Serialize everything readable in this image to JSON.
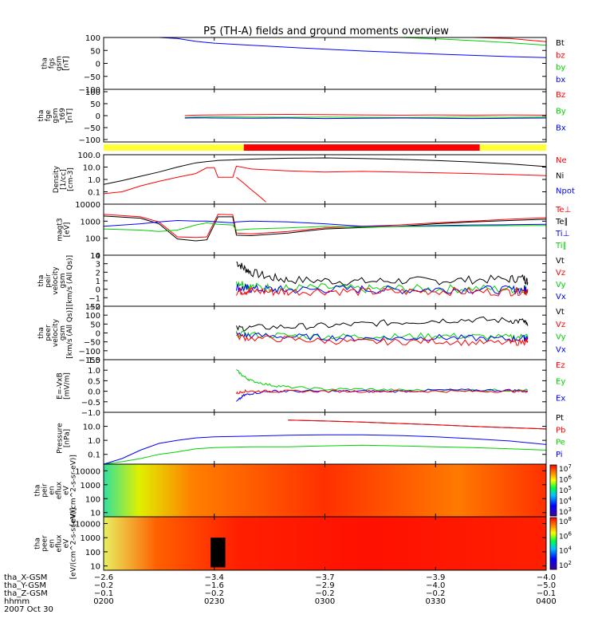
{
  "title": "P5 (TH-A) fields and ground moments overview",
  "colors": {
    "black": "#000000",
    "red": "#ff0000",
    "green": "#00d000",
    "blue": "#0000ff",
    "yellow": "#ffff33"
  },
  "chart_data": [
    {
      "type": "line",
      "id": "fgs",
      "ylabel": [
        "tha",
        "fgs",
        "gsm",
        "[nT]"
      ],
      "ylim": [
        -100,
        100
      ],
      "log": false,
      "yticks": [
        "100",
        "50",
        "0",
        "−50",
        "−100"
      ],
      "legend": [
        {
          "name": "Bt",
          "color": "black"
        },
        {
          "name": "bz",
          "color": "red"
        },
        {
          "name": "by",
          "color": "green"
        },
        {
          "name": "bx",
          "color": "blue"
        }
      ],
      "x": [
        0,
        15,
        20,
        25,
        30,
        40,
        50,
        60,
        70,
        80,
        90,
        100,
        110,
        120
      ],
      "series": [
        {
          "name": "bz",
          "color": "red",
          "values": [
            null,
            null,
            null,
            100,
            100,
            100,
            100,
            100,
            100,
            100,
            100,
            100,
            96,
            84
          ]
        },
        {
          "name": "by",
          "color": "green",
          "values": [
            null,
            null,
            null,
            100,
            100,
            100,
            100,
            100,
            100,
            100,
            95,
            88,
            80,
            70
          ]
        },
        {
          "name": "bx",
          "color": "blue",
          "values": [
            100,
            100,
            96,
            85,
            78,
            70,
            62,
            55,
            48,
            42,
            36,
            31,
            26,
            22
          ]
        }
      ]
    },
    {
      "type": "line",
      "id": "fge",
      "ylabel": [
        "tha",
        "fge",
        "gsm",
        "_t69",
        "[nT]"
      ],
      "ylim": [
        -110,
        110
      ],
      "log": false,
      "yticks": [
        "100",
        "50",
        "0",
        "−50",
        "−100"
      ],
      "legend": [
        {
          "name": "Bz",
          "color": "red"
        },
        {
          "name": "By",
          "color": "green"
        },
        {
          "name": "Bx",
          "color": "blue"
        }
      ],
      "x": [
        22,
        25,
        30,
        40,
        50,
        60,
        70,
        80,
        90,
        100,
        110,
        120
      ],
      "series": [
        {
          "name": "Bz",
          "color": "red",
          "values": [
            0,
            2,
            3,
            4,
            5,
            4,
            3,
            2,
            3,
            2,
            3,
            2
          ]
        },
        {
          "name": "By",
          "color": "green",
          "values": [
            -8,
            -6,
            -5,
            -6,
            -7,
            -6,
            -7,
            -8,
            -7,
            -6,
            -7,
            -6
          ]
        },
        {
          "name": "Bx",
          "color": "blue",
          "values": [
            -10,
            -9,
            -10,
            -11,
            -10,
            -12,
            -11,
            -10,
            -11,
            -12,
            -11,
            -10
          ]
        }
      ]
    },
    {
      "type": "line",
      "id": "dens",
      "ylabel": [
        "Density",
        "[1/cc]",
        "[cm-3]"
      ],
      "ylim": [
        0.01,
        100
      ],
      "log": true,
      "yticks": [
        "100.0",
        "10.0",
        "1.0",
        "0.1"
      ],
      "legend": [
        {
          "name": "Ne",
          "color": "red"
        },
        {
          "name": "Ni",
          "color": "black"
        },
        {
          "name": "Npot",
          "color": "blue"
        }
      ],
      "x": [
        0,
        5,
        10,
        15,
        20,
        25,
        28,
        30,
        31,
        35,
        36,
        40,
        50,
        60,
        70,
        80,
        90,
        100,
        110,
        120
      ],
      "series": [
        {
          "name": "Ni",
          "color": "black",
          "values": [
            0.4,
            0.8,
            1.8,
            4,
            10,
            22,
            28,
            32,
            35,
            38,
            40,
            44,
            52,
            55,
            50,
            42,
            34,
            26,
            18,
            11
          ]
        },
        {
          "name": "Ne",
          "color": "red",
          "values": [
            0.07,
            0.1,
            0.3,
            0.7,
            1.5,
            3,
            9,
            9,
            1.5,
            1.5,
            12,
            7,
            5,
            4,
            4.5,
            4,
            3.5,
            3,
            2.5,
            2
          ]
        },
        {
          "name": "Ne-decay",
          "color": "red",
          "x": [
            36,
            38,
            40,
            42,
            44
          ],
          "values": [
            1.5,
            0.5,
            0.15,
            0.05,
            0.015
          ]
        }
      ]
    },
    {
      "type": "line",
      "id": "temp",
      "ylabel": [
        "magt3",
        "[eV]"
      ],
      "ylim": [
        10,
        10000
      ],
      "log": true,
      "yticks": [
        "10000",
        "1000",
        "100",
        "10"
      ],
      "legend": [
        {
          "name": "Te⊥",
          "color": "red"
        },
        {
          "name": "Te∥",
          "color": "black"
        },
        {
          "name": "Ti⊥",
          "color": "blue"
        },
        {
          "name": "Ti∥",
          "color": "green"
        }
      ],
      "x": [
        0,
        10,
        15,
        20,
        25,
        28,
        31,
        35,
        36,
        40,
        50,
        60,
        70,
        80,
        90,
        100,
        110,
        120
      ],
      "series": [
        {
          "name": "Te⊥",
          "color": "red",
          "values": [
            2500,
            1800,
            900,
            120,
            110,
            120,
            2500,
            2400,
            200,
            180,
            250,
            400,
            500,
            600,
            800,
            1000,
            1300,
            1600
          ]
        },
        {
          "name": "Te∥",
          "color": "black",
          "values": [
            2000,
            1500,
            700,
            90,
            70,
            80,
            1800,
            1800,
            150,
            140,
            200,
            350,
            420,
            500,
            700,
            900,
            1100,
            1300
          ]
        },
        {
          "name": "Ti⊥",
          "color": "blue",
          "values": [
            500,
            700,
            900,
            1100,
            1000,
            1000,
            900,
            800,
            900,
            1000,
            900,
            700,
            500,
            500,
            550,
            600,
            620,
            650
          ]
        },
        {
          "name": "Ti∥",
          "color": "green",
          "values": [
            350,
            300,
            250,
            300,
            600,
            800,
            650,
            600,
            300,
            350,
            400,
            500,
            450,
            480,
            500,
            520,
            540,
            560
          ]
        }
      ]
    },
    {
      "type": "line",
      "id": "peirv",
      "ylabel": [
        "tha",
        "peir",
        "velocity",
        "gsm",
        "[km/s (All Qs)]"
      ],
      "ylim": [
        -2,
        4
      ],
      "log": false,
      "yticks": [
        "4",
        "3",
        "2",
        "1",
        "0",
        "−1",
        "−2"
      ],
      "legend": [
        {
          "name": "Vt",
          "color": "black"
        },
        {
          "name": "Vz",
          "color": "red"
        },
        {
          "name": "Vy",
          "color": "green"
        },
        {
          "name": "Vx",
          "color": "blue"
        }
      ],
      "x": [
        36,
        38,
        40,
        45,
        50,
        60,
        70,
        80,
        90,
        100,
        110,
        114,
        115
      ],
      "series": [
        {
          "name": "Vt",
          "color": "black",
          "values": [
            3.2,
            2.5,
            2.0,
            1.4,
            1.1,
            1.0,
            0.9,
            1.0,
            1.0,
            1.1,
            1.2,
            1.3,
            0.8
          ]
        },
        {
          "name": "Vy",
          "color": "green",
          "values": [
            0.9,
            0.6,
            0.3,
            0.2,
            0.1,
            0.2,
            0.0,
            0.1,
            0.0,
            0.1,
            0.0,
            0.1,
            0.0
          ]
        },
        {
          "name": "Vx",
          "color": "blue",
          "values": [
            0.2,
            0.1,
            0.0,
            0.0,
            -0.1,
            0.0,
            0.0,
            -0.1,
            0.0,
            0.0,
            -0.1,
            0.0,
            0.0
          ]
        },
        {
          "name": "Vz",
          "color": "red",
          "values": [
            -0.3,
            -0.2,
            -0.2,
            -0.3,
            -0.3,
            -0.2,
            -0.3,
            -0.3,
            -0.2,
            -0.3,
            -0.3,
            -0.2,
            -0.3
          ]
        }
      ]
    },
    {
      "type": "line",
      "id": "peerv",
      "ylabel": [
        "tha",
        "peer",
        "velocity",
        "gsm",
        "[km/s (All Qs)]"
      ],
      "ylim": [
        -150,
        150
      ],
      "log": false,
      "yticks": [
        "150",
        "100",
        "50",
        "0",
        "−50",
        "−100",
        "−150"
      ],
      "legend": [
        {
          "name": "Vt",
          "color": "black"
        },
        {
          "name": "Vz",
          "color": "red"
        },
        {
          "name": "Vy",
          "color": "green"
        },
        {
          "name": "Vx",
          "color": "blue"
        }
      ],
      "x": [
        36,
        40,
        50,
        60,
        70,
        80,
        90,
        100,
        110,
        114,
        115
      ],
      "series": [
        {
          "name": "Vt",
          "color": "black",
          "values": [
            25,
            30,
            35,
            40,
            50,
            60,
            70,
            75,
            70,
            65,
            40
          ]
        },
        {
          "name": "Vy",
          "color": "green",
          "values": [
            -5,
            -10,
            -15,
            -20,
            -20,
            -20,
            -15,
            -20,
            -25,
            -20,
            -15
          ]
        },
        {
          "name": "Vx",
          "color": "blue",
          "values": [
            -10,
            -15,
            -20,
            -25,
            -30,
            -30,
            -25,
            -30,
            -35,
            -30,
            -25
          ]
        },
        {
          "name": "Vz",
          "color": "red",
          "values": [
            -20,
            -30,
            -35,
            -45,
            -50,
            -50,
            -45,
            -55,
            -55,
            -50,
            -45
          ]
        }
      ]
    },
    {
      "type": "line",
      "id": "efield",
      "ylabel": [
        "E=-VxB",
        "[mV/m]"
      ],
      "ylim": [
        -1.0,
        1.5
      ],
      "log": false,
      "yticks": [
        "1.5",
        "1.0",
        "0.5",
        "0.0",
        "−0.5",
        "−1.0"
      ],
      "legend": [
        {
          "name": "Ez",
          "color": "red"
        },
        {
          "name": "Ey",
          "color": "green"
        },
        {
          "name": "Ex",
          "color": "blue"
        }
      ],
      "x": [
        36,
        38,
        40,
        45,
        50,
        60,
        70,
        80,
        90,
        100,
        110,
        115
      ],
      "series": [
        {
          "name": "Ey",
          "color": "green",
          "values": [
            1.0,
            0.7,
            0.5,
            0.3,
            0.2,
            0.1,
            0.1,
            0.05,
            0.05,
            0.05,
            0.05,
            0.05
          ]
        },
        {
          "name": "Ex",
          "color": "blue",
          "values": [
            -0.5,
            -0.2,
            -0.1,
            0.0,
            0.0,
            0.0,
            0.0,
            0.0,
            0.05,
            0.05,
            0.05,
            0.0
          ]
        },
        {
          "name": "Ez",
          "color": "red",
          "values": [
            -0.1,
            0.0,
            0.0,
            0.0,
            0.0,
            0.0,
            0.0,
            0.0,
            0.0,
            0.0,
            0.0,
            0.0
          ]
        }
      ]
    },
    {
      "type": "line",
      "id": "press",
      "ylabel": [
        "Pressure",
        "[nPa]"
      ],
      "ylim": [
        0.02,
        100
      ],
      "log": true,
      "yticks": [
        "10.0",
        "1.0",
        "0.1"
      ],
      "legend": [
        {
          "name": "Pt",
          "color": "black"
        },
        {
          "name": "Pb",
          "color": "red"
        },
        {
          "name": "Pe",
          "color": "green"
        },
        {
          "name": "Pi",
          "color": "blue"
        }
      ],
      "x": [
        0,
        5,
        10,
        15,
        20,
        25,
        30,
        40,
        50,
        60,
        70,
        80,
        90,
        100,
        110,
        120
      ],
      "series": [
        {
          "name": "Pt",
          "color": "black",
          "values": [
            null,
            null,
            null,
            null,
            null,
            null,
            null,
            null,
            28,
            24,
            20,
            16,
            13,
            10,
            8,
            6.5
          ]
        },
        {
          "name": "Pb",
          "color": "red",
          "values": [
            null,
            null,
            null,
            null,
            null,
            null,
            null,
            null,
            28,
            24,
            20,
            16,
            13,
            10,
            8,
            6.5
          ]
        },
        {
          "name": "Pe",
          "color": "green",
          "values": [
            0.02,
            0.03,
            0.05,
            0.1,
            0.15,
            0.25,
            0.3,
            0.35,
            0.35,
            0.4,
            0.45,
            0.4,
            0.35,
            0.3,
            0.25,
            0.2
          ]
        },
        {
          "name": "Pi",
          "color": "blue",
          "values": [
            0.02,
            0.05,
            0.2,
            0.6,
            1.0,
            1.5,
            1.8,
            2.0,
            2.3,
            2.5,
            2.5,
            2.2,
            1.8,
            1.3,
            0.9,
            0.5
          ]
        }
      ]
    },
    {
      "type": "heatmap",
      "id": "peir_spec",
      "ylabel": [
        "tha",
        "peir",
        "en",
        "eflux",
        "eV",
        "[eV/(cm^2-s-sr-eV)]"
      ],
      "ylim": [
        5,
        30000
      ],
      "log": true,
      "yticks": [
        "10000",
        "1000",
        "100",
        "10"
      ],
      "colorbar": {
        "labels": [
          "10^7",
          "10^6",
          "10^5",
          "10^4",
          "10^3"
        ]
      }
    },
    {
      "type": "heatmap",
      "id": "peer_spec",
      "ylabel": [
        "tha",
        "peer",
        "en",
        "eflux",
        "eV",
        "[eV/(cm^2-s-sr-eV)]"
      ],
      "ylim": [
        5,
        30000
      ],
      "log": true,
      "yticks": [
        "10000",
        "1000",
        "100",
        "10"
      ],
      "colorbar": {
        "labels": [
          "10^8",
          "10^6",
          "10^4",
          "10^2"
        ]
      }
    }
  ],
  "strip": [
    {
      "from": 0,
      "to": 38,
      "color": "yellow"
    },
    {
      "from": 38,
      "to": 102,
      "color": "red"
    },
    {
      "from": 102,
      "to": 120,
      "color": "yellow"
    }
  ],
  "xaxis": {
    "range": [
      0,
      120
    ],
    "tick_minutes": [
      0,
      30,
      60,
      90,
      120
    ],
    "rows": [
      {
        "label": "tha_X-GSM",
        "values": [
          "−2.6",
          "−3.4",
          "−3.7",
          "−3.9",
          "−4.0"
        ]
      },
      {
        "label": "tha_Y-GSM",
        "values": [
          "−0.2",
          "−1.6",
          "−2.9",
          "−4.0",
          "−5.0"
        ]
      },
      {
        "label": "tha_Z-GSM",
        "values": [
          "−0.1",
          "−0.2",
          "−0.2",
          "−0.2",
          "−0.1"
        ]
      },
      {
        "label": "hhmm",
        "values": [
          "0200",
          "0230",
          "0300",
          "0330",
          "0400"
        ]
      }
    ],
    "date": "2007 Oct 30"
  }
}
